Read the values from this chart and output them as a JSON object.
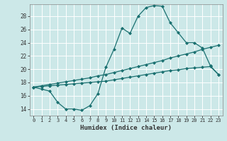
{
  "xlabel": "Humidex (Indice chaleur)",
  "bg_color": "#cce8e8",
  "grid_color": "#ffffff",
  "line_color": "#1a7070",
  "xlim": [
    -0.5,
    23.5
  ],
  "ylim": [
    13.0,
    29.8
  ],
  "xticks": [
    0,
    1,
    2,
    3,
    4,
    5,
    6,
    7,
    8,
    9,
    10,
    11,
    12,
    13,
    14,
    15,
    16,
    17,
    18,
    19,
    20,
    21,
    22,
    23
  ],
  "yticks": [
    14,
    16,
    18,
    20,
    22,
    24,
    26,
    28
  ],
  "line1_x": [
    0,
    1,
    2,
    3,
    4,
    5,
    6,
    7,
    8,
    9,
    10,
    11,
    12,
    13,
    14,
    15,
    16,
    17,
    18,
    19,
    20,
    21,
    22,
    23
  ],
  "line1_y": [
    17.3,
    17.0,
    16.7,
    15.0,
    14.0,
    14.0,
    13.8,
    14.5,
    16.3,
    20.3,
    23.0,
    26.2,
    25.4,
    28.0,
    29.3,
    29.6,
    29.5,
    27.0,
    25.5,
    24.0,
    24.0,
    23.2,
    20.5,
    19.2
  ],
  "line2_x": [
    0,
    1,
    2,
    3,
    4,
    5,
    6,
    7,
    8,
    9,
    10,
    11,
    12,
    13,
    14,
    15,
    16,
    17,
    18,
    19,
    20,
    21,
    22,
    23
  ],
  "line2_y": [
    17.3,
    17.5,
    17.7,
    17.9,
    18.1,
    18.3,
    18.5,
    18.7,
    19.0,
    19.2,
    19.5,
    19.8,
    20.1,
    20.4,
    20.7,
    21.0,
    21.3,
    21.7,
    22.0,
    22.3,
    22.6,
    23.0,
    23.3,
    23.6
  ],
  "line3_x": [
    0,
    1,
    2,
    3,
    4,
    5,
    6,
    7,
    8,
    9,
    10,
    11,
    12,
    13,
    14,
    15,
    16,
    17,
    18,
    19,
    20,
    21,
    22,
    23
  ],
  "line3_y": [
    17.3,
    17.4,
    17.5,
    17.6,
    17.7,
    17.8,
    17.9,
    18.0,
    18.1,
    18.2,
    18.4,
    18.6,
    18.8,
    19.0,
    19.2,
    19.4,
    19.6,
    19.8,
    19.9,
    20.1,
    20.2,
    20.3,
    20.4,
    19.2
  ]
}
